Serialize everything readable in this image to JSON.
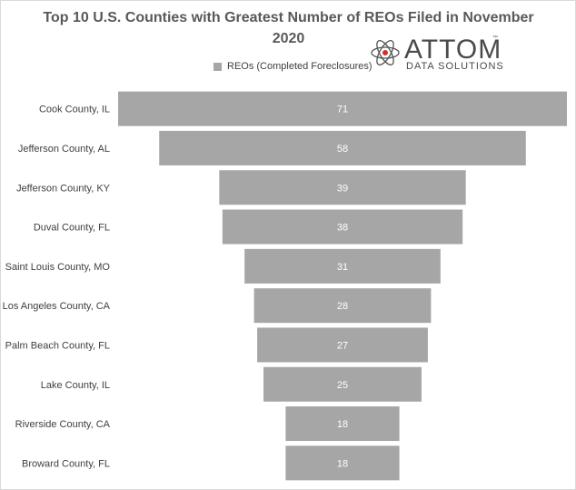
{
  "chart_data": {
    "type": "bar",
    "title": "Top 10 U.S. Counties with Greatest Number of REOs Filed in November 2020",
    "categories": [
      "Cook County, IL",
      "Jefferson County, AL",
      "Jefferson County, KY",
      "Duval County, FL",
      "Saint Louis County, MO",
      "Los Angeles County, CA",
      "Palm Beach County, FL",
      "Lake County, IL",
      "Riverside County, CA",
      "Broward County, FL"
    ],
    "series": [
      {
        "name": "REOs (Completed Foreclosures)",
        "values": [
          71,
          58,
          39,
          38,
          31,
          28,
          27,
          25,
          18,
          18
        ]
      }
    ],
    "orientation": "horizontal-funnel",
    "legend_position": "top",
    "grid": false,
    "bar_color": "#a6a6a6"
  },
  "logo": {
    "wordmark": "ATTOM",
    "tagline": "DATA SOLUTIONS",
    "tm": "™"
  }
}
